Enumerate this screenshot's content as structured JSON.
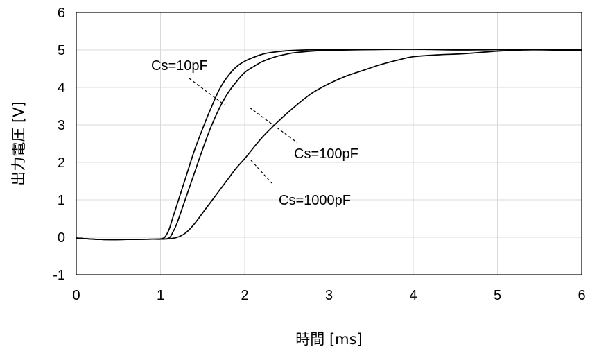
{
  "chart_data": {
    "type": "line",
    "xlabel": "時間 [ms]",
    "ylabel": "出力電圧 [V]",
    "xlim": [
      0,
      6
    ],
    "ylim": [
      -1,
      6
    ],
    "xticks": [
      "0",
      "1",
      "2",
      "3",
      "4",
      "5",
      "6"
    ],
    "yticks": [
      "-1",
      "0",
      "1",
      "2",
      "3",
      "4",
      "5",
      "6"
    ],
    "grid": true,
    "series": [
      {
        "name": "Cs=10pF",
        "x": [
          0,
          0.3,
          0.6,
          0.9,
          1.0,
          1.05,
          1.1,
          1.15,
          1.2,
          1.3,
          1.4,
          1.5,
          1.6,
          1.7,
          1.8,
          1.9,
          2.0,
          2.1,
          2.2,
          2.3,
          2.5,
          2.7,
          3.0,
          3.5,
          4.0,
          4.5,
          5.0,
          5.5,
          6.0
        ],
        "y": [
          -0.02,
          -0.06,
          -0.06,
          -0.05,
          -0.04,
          0.0,
          0.2,
          0.55,
          0.9,
          1.6,
          2.3,
          2.9,
          3.45,
          3.95,
          4.3,
          4.55,
          4.7,
          4.8,
          4.88,
          4.93,
          4.98,
          5.0,
          5.01,
          5.02,
          5.02,
          5.01,
          5.02,
          5.01,
          5.01
        ]
      },
      {
        "name": "Cs=100pF",
        "x": [
          0,
          0.3,
          0.6,
          0.9,
          1.0,
          1.1,
          1.15,
          1.2,
          1.3,
          1.4,
          1.5,
          1.6,
          1.7,
          1.8,
          1.9,
          2.0,
          2.1,
          2.2,
          2.3,
          2.4,
          2.5,
          2.6,
          2.8,
          3.0,
          3.5,
          4.0,
          4.5,
          5.0,
          5.5,
          6.0
        ],
        "y": [
          -0.02,
          -0.06,
          -0.06,
          -0.05,
          -0.05,
          -0.02,
          0.15,
          0.4,
          1.05,
          1.7,
          2.35,
          2.95,
          3.45,
          3.85,
          4.15,
          4.4,
          4.55,
          4.68,
          4.77,
          4.84,
          4.89,
          4.93,
          4.97,
          4.99,
          5.01,
          5.02,
          5.0,
          5.01,
          5.02,
          5.0
        ]
      },
      {
        "name": "Cs=1000pF",
        "x": [
          0,
          0.3,
          0.6,
          0.9,
          1.0,
          1.1,
          1.2,
          1.3,
          1.4,
          1.5,
          1.6,
          1.7,
          1.8,
          1.9,
          2.0,
          2.2,
          2.4,
          2.6,
          2.8,
          3.0,
          3.2,
          3.4,
          3.6,
          3.8,
          4.0,
          4.3,
          4.6,
          5.0,
          5.3,
          5.6,
          6.0
        ],
        "y": [
          -0.02,
          -0.06,
          -0.06,
          -0.05,
          -0.05,
          -0.04,
          0.0,
          0.12,
          0.35,
          0.65,
          0.95,
          1.25,
          1.55,
          1.85,
          2.1,
          2.65,
          3.1,
          3.5,
          3.85,
          4.1,
          4.3,
          4.45,
          4.6,
          4.72,
          4.82,
          4.87,
          4.9,
          4.97,
          5.0,
          5.0,
          4.98
        ]
      }
    ],
    "annotations": [
      {
        "text": "Cs=10pF",
        "series": "Cs=10pF"
      },
      {
        "text": "Cs=100pF",
        "series": "Cs=100pF"
      },
      {
        "text": "Cs=1000pF",
        "series": "Cs=1000pF"
      }
    ]
  }
}
